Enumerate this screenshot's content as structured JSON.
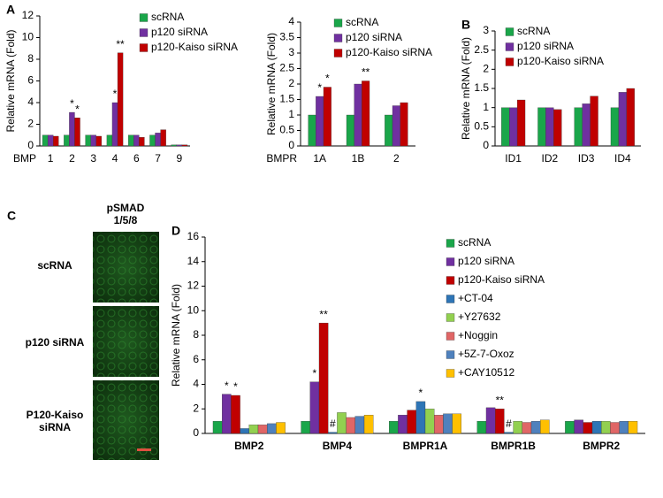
{
  "chart_data": [
    {
      "type": "bar",
      "panel": "A",
      "ylabel": "Relative mRNA (Fold)",
      "xlabel": "BMP",
      "categories": [
        "1",
        "2",
        "3",
        "4",
        "6",
        "7",
        "9"
      ],
      "series": [
        {
          "name": "scRNA",
          "color": "#1aa64a",
          "values": [
            1,
            1,
            1,
            1,
            1,
            1,
            0.1
          ]
        },
        {
          "name": "p120 siRNA",
          "color": "#7030a0",
          "values": [
            1,
            3.1,
            1,
            4,
            1,
            1.2,
            0.1
          ]
        },
        {
          "name": "p120-Kaiso siRNA",
          "color": "#c00000",
          "values": [
            0.9,
            2.6,
            0.9,
            8.6,
            0.8,
            1.5,
            0.1
          ]
        }
      ],
      "ylim": [
        0,
        12
      ],
      "yticks": [
        0,
        2,
        4,
        6,
        8,
        10,
        12
      ],
      "annotations": [
        {
          "text": "*",
          "category": 1,
          "series": 1
        },
        {
          "text": "*",
          "category": 1,
          "series": 2
        },
        {
          "text": "*",
          "category": 3,
          "series": 1
        },
        {
          "text": "**",
          "category": 3,
          "series": 2
        }
      ]
    },
    {
      "type": "bar",
      "ylabel": "Relative mRNA (Fold)",
      "xlabel": "BMPR",
      "categories": [
        "1A",
        "1B",
        "2"
      ],
      "series": [
        {
          "name": "scRNA",
          "color": "#1aa64a",
          "values": [
            1,
            1,
            1
          ]
        },
        {
          "name": "p120 siRNA",
          "color": "#7030a0",
          "values": [
            1.6,
            2.0,
            1.3
          ]
        },
        {
          "name": "p120-Kaiso siRNA",
          "color": "#c00000",
          "values": [
            1.9,
            2.1,
            1.4
          ]
        }
      ],
      "ylim": [
        0,
        4
      ],
      "yticks": [
        0,
        0.5,
        1,
        1.5,
        2,
        2.5,
        3,
        3.5,
        4
      ],
      "annotations": [
        {
          "text": "*",
          "category": 0,
          "series": 1
        },
        {
          "text": "*",
          "category": 0,
          "series": 2
        },
        {
          "text": "**",
          "category": 1,
          "series": 2
        }
      ]
    },
    {
      "type": "bar",
      "panel": "B",
      "ylabel": "Relative mRNA (Fold)",
      "categories": [
        "ID1",
        "ID2",
        "ID3",
        "ID4"
      ],
      "series": [
        {
          "name": "scRNA",
          "color": "#1aa64a",
          "values": [
            1,
            1,
            1,
            1
          ]
        },
        {
          "name": "p120 siRNA",
          "color": "#7030a0",
          "values": [
            1,
            1,
            1.1,
            1.4
          ]
        },
        {
          "name": "p120-Kaiso siRNA",
          "color": "#c00000",
          "values": [
            1.2,
            0.95,
            1.3,
            1.5
          ]
        }
      ],
      "ylim": [
        0,
        3
      ],
      "yticks": [
        0,
        0.5,
        1,
        1.5,
        2,
        2.5,
        3
      ],
      "annotations": []
    },
    {
      "type": "bar",
      "panel": "D",
      "ylabel": "Relative mRNA (Fold)",
      "categories": [
        "BMP2",
        "BMP4",
        "BMPR1A",
        "BMPR1B",
        "BMPR2"
      ],
      "series": [
        {
          "name": "scRNA",
          "color": "#1aa64a",
          "values": [
            1,
            1,
            1,
            1,
            1
          ]
        },
        {
          "name": "p120 siRNA",
          "color": "#7030a0",
          "values": [
            3.2,
            4.2,
            1.5,
            2.1,
            1.1
          ]
        },
        {
          "name": "p120-Kaiso siRNA",
          "color": "#c00000",
          "values": [
            3.1,
            9.0,
            1.9,
            2.0,
            0.9
          ]
        },
        {
          "name": "+CT-04",
          "color": "#2e75b6",
          "values": [
            0.4,
            0.1,
            2.6,
            0.1,
            1.0
          ]
        },
        {
          "name": "+Y27632",
          "color": "#92d050",
          "values": [
            0.7,
            1.7,
            2.0,
            1.0,
            1.0
          ]
        },
        {
          "name": "+Noggin",
          "color": "#e06666",
          "values": [
            0.7,
            1.3,
            1.5,
            0.9,
            0.9
          ]
        },
        {
          "name": "+5Z-7-Oxoz",
          "color": "#4f81bd",
          "values": [
            0.8,
            1.4,
            1.6,
            1.0,
            1.0
          ]
        },
        {
          "name": "+CAY10512",
          "color": "#ffc000",
          "values": [
            0.9,
            1.5,
            1.6,
            1.1,
            1.0
          ]
        }
      ],
      "ylim": [
        0,
        16
      ],
      "yticks": [
        0,
        2,
        4,
        6,
        8,
        10,
        12,
        14,
        16
      ],
      "annotations": [
        {
          "text": "*",
          "category": 0,
          "series": 1
        },
        {
          "text": "*",
          "category": 0,
          "series": 2
        },
        {
          "text": "*",
          "category": 1,
          "series": 1
        },
        {
          "text": "**",
          "category": 1,
          "series": 2
        },
        {
          "text": "#",
          "category": 1,
          "series": 3
        },
        {
          "text": "*",
          "category": 2,
          "series": 3
        },
        {
          "text": "**",
          "category": 3,
          "series": 2
        },
        {
          "text": "#",
          "category": 3,
          "series": 3
        }
      ]
    }
  ],
  "panel_c": {
    "label": "C",
    "title": [
      "pSMAD",
      "1/5/8"
    ],
    "rows": [
      "scRNA",
      "p120 siRNA",
      "P120-Kaiso siRNA"
    ]
  }
}
